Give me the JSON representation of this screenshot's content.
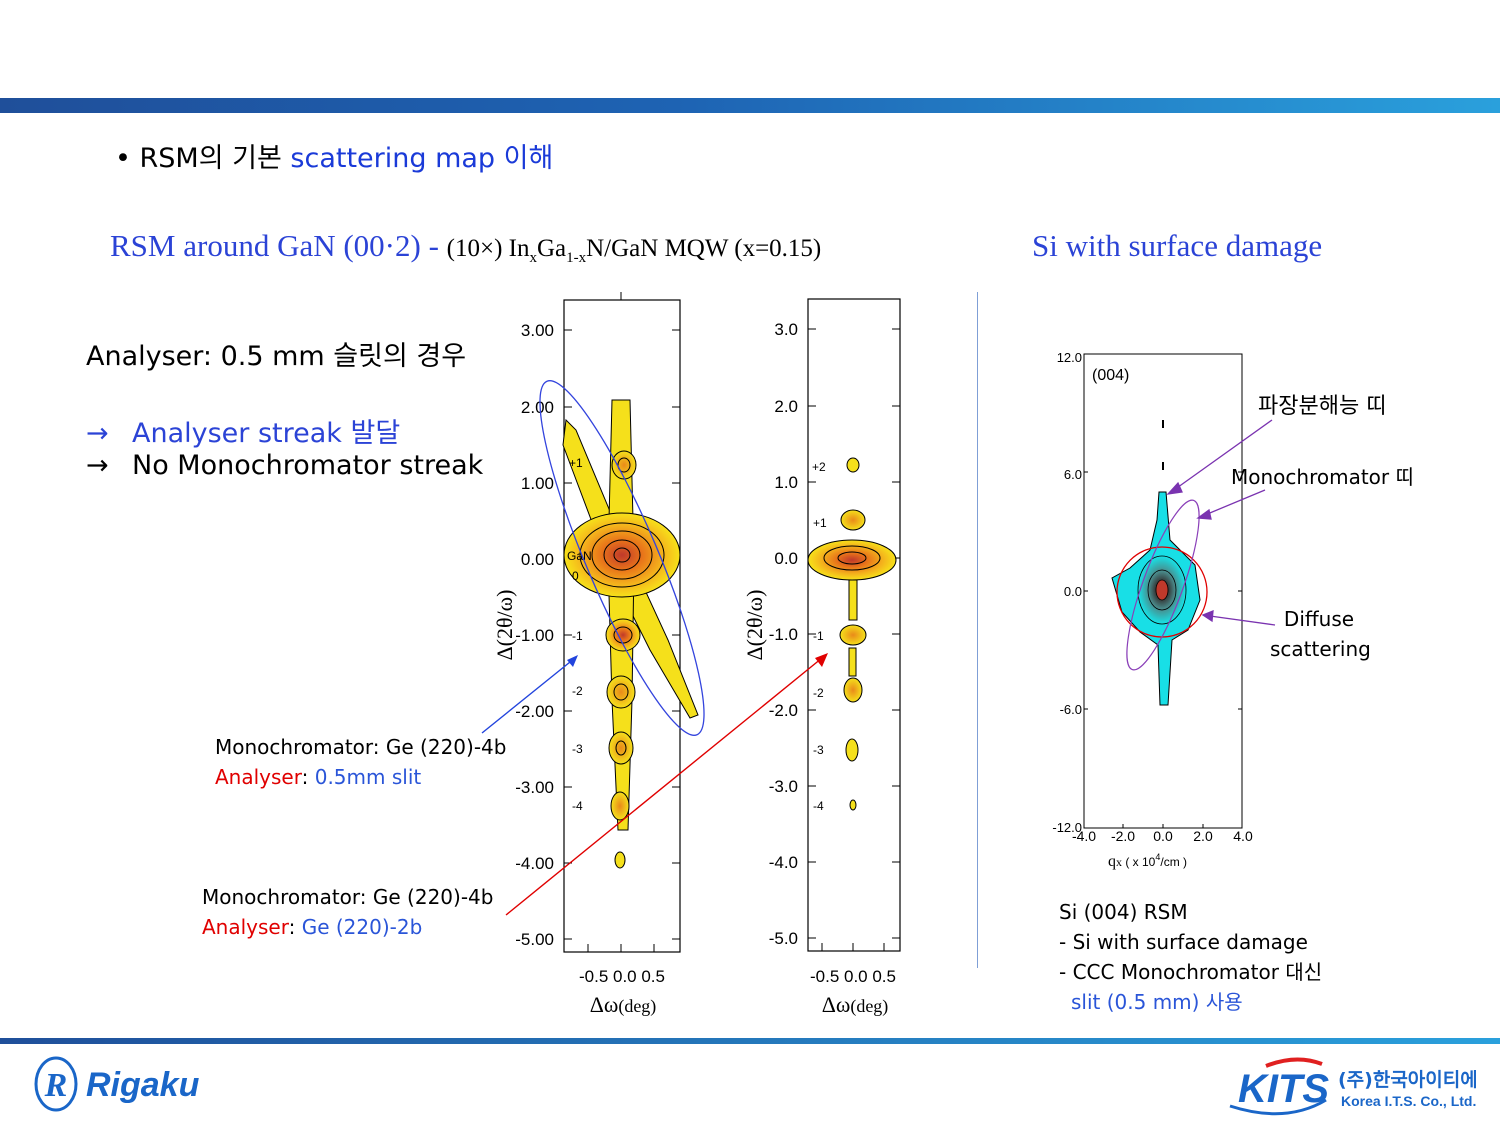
{
  "slide": {
    "bullet": {
      "prefix": "RSM의 기본 ",
      "highlight": "scattering map 이해"
    },
    "heading_left": {
      "blue": "RSM around GaN (00·2) - ",
      "black_pre": "(10×) In",
      "sub1": "x",
      "black_mid": "Ga",
      "sub2": "1-x",
      "black_post": "N/GaN MQW (x=0.15)"
    },
    "heading_right": "Si with surface damage",
    "analyser_title": "Analyser: 0.5 mm 슬릿의 경우",
    "arrow_items": [
      {
        "symbol": "→",
        "text": "Analyser streak 발달",
        "color": "#2b43d6"
      },
      {
        "symbol": "→",
        "text": "No Monochromator streak",
        "color": "#000000"
      }
    ],
    "caption1": {
      "line1": "Monochromator: Ge (220)-4b",
      "label": "Analyser",
      "value": "0.5mm slit"
    },
    "caption2": {
      "line1": "Monochromator: Ge (220)-4b",
      "label": "Analyser",
      "value": "Ge (220)-2b"
    },
    "plot1": {
      "yticks": [
        "3.00",
        "2.00",
        "1.00",
        "0.00",
        "-1.00",
        "-2.00",
        "-3.00",
        "-4.00",
        "-5.00"
      ],
      "xticks": "-0.5 0.0  0.5",
      "ylabel": "Δ(2θ/ω)",
      "xlabel_sym": "Δω",
      "xlabel_unit": "(deg)",
      "peak_labels": [
        "+1",
        "GaN",
        "0",
        "-1",
        "-2",
        "-3",
        "-4"
      ]
    },
    "plot2": {
      "yticks": [
        "3.0",
        "2.0",
        "1.0",
        "0.0",
        "-1.0",
        "-2.0",
        "-3.0",
        "-4.0",
        "-5.0"
      ],
      "xticks": "-0.5 0.0  0.5",
      "ylabel": "Δ(2θ/ω)",
      "xlabel_sym": "Δω",
      "xlabel_unit": "(deg)",
      "peak_labels": [
        "+2",
        "+1",
        "-1",
        "-2",
        "-3",
        "-4"
      ]
    },
    "plot3": {
      "label": "(004)",
      "yticks": [
        "12.0",
        "6.0",
        "0.0",
        "-6.0",
        "-12.0"
      ],
      "xticks": [
        "-4.0",
        "-2.0",
        "0.0",
        "2.0",
        "4.0"
      ],
      "xlabel_q": "q",
      "xlabel_sub": "x",
      "xlabel_rest": " ( x 10",
      "xlabel_sup": "4",
      "xlabel_end": "/cm )"
    },
    "annotations": {
      "wavelength": "파장분해능 띠",
      "mono": "Monochromator 띠",
      "diffuse1": "Diffuse",
      "diffuse2": "scattering"
    },
    "si_notes": {
      "line1": "Si (004) RSM",
      "line2": "- Si with surface damage",
      "line3": "- CCC Monochromator 대신",
      "line4": "slit (0.5 mm) 사용"
    },
    "logos": {
      "rigaku": "Rigaku",
      "kits": "KITS",
      "kits_korean": "(주)한국아이티에스",
      "kits_english": "Korea I.T.S. Co., Ltd."
    },
    "colors": {
      "accent_blue": "#2b43d6",
      "red": "#e00000",
      "purple": "#7a33b0"
    }
  }
}
